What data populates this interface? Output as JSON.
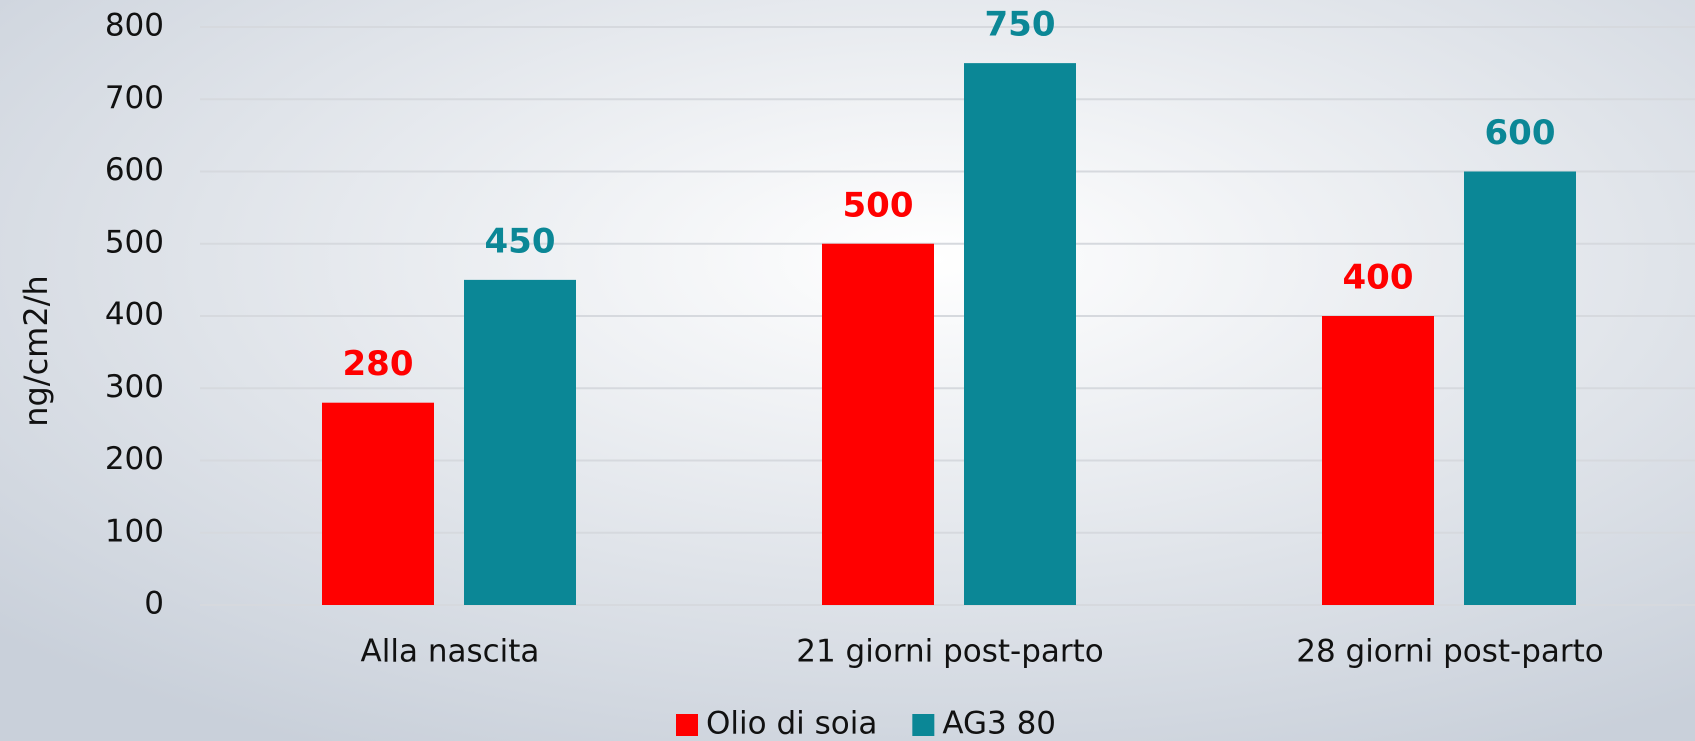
{
  "chart_data": {
    "type": "bar",
    "y_label": "ng/cm2/h",
    "categories": [
      "Alla nascita",
      "21 giorni post-parto",
      "28 giorni post-parto"
    ],
    "series": [
      {
        "name": "Olio di soia",
        "color": "#ff0000",
        "values": [
          280,
          500,
          400
        ]
      },
      {
        "name": "AG3 80",
        "color": "#0b8796",
        "values": [
          450,
          750,
          600
        ]
      }
    ],
    "ylim": [
      0,
      800
    ],
    "yticks": [
      0,
      100,
      200,
      300,
      400,
      500,
      600,
      700,
      800
    ],
    "grid": true,
    "legend": "bottom"
  }
}
